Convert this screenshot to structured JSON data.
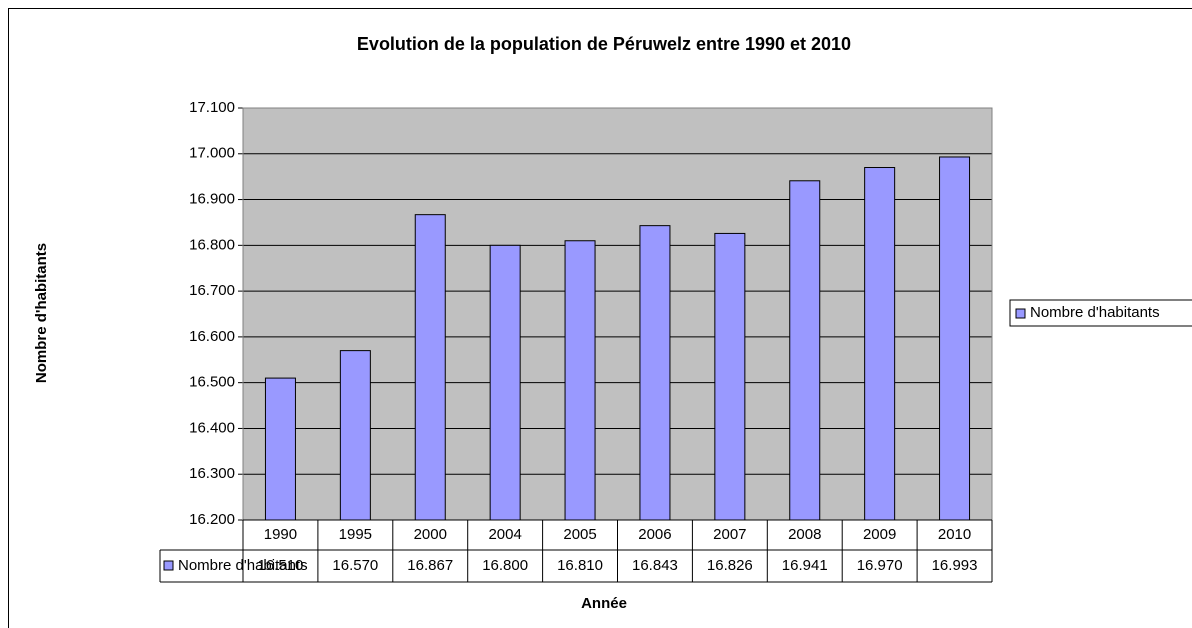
{
  "chart_data": {
    "type": "bar",
    "title": "Evolution de la population de Péruwelz entre 1990 et 2010",
    "x_label": "Année",
    "y_label": "Nombre d'habitants",
    "categories": [
      "1990",
      "1995",
      "2000",
      "2004",
      "2005",
      "2006",
      "2007",
      "2008",
      "2009",
      "2010"
    ],
    "series": [
      {
        "name": "Nombre d'habitants",
        "color": "#9999ff",
        "values": [
          16510,
          16570,
          16867,
          16800,
          16810,
          16843,
          16826,
          16941,
          16970,
          16993
        ],
        "value_labels": [
          "16.510",
          "16.570",
          "16.867",
          "16.800",
          "16.810",
          "16.843",
          "16.826",
          "16.941",
          "16.970",
          "16.993"
        ]
      }
    ],
    "ylim": [
      16200,
      17100
    ],
    "yticks": [
      {
        "value": 16200,
        "label": "16.200"
      },
      {
        "value": 16300,
        "label": "16.300"
      },
      {
        "value": 16400,
        "label": "16.400"
      },
      {
        "value": 16500,
        "label": "16.500"
      },
      {
        "value": 16600,
        "label": "16.600"
      },
      {
        "value": 16700,
        "label": "16.700"
      },
      {
        "value": 16800,
        "label": "16.800"
      },
      {
        "value": 16900,
        "label": "16.900"
      },
      {
        "value": 17000,
        "label": "17.000"
      },
      {
        "value": 17100,
        "label": "17.100"
      }
    ],
    "grid": true,
    "legend": "right",
    "plot_background": "#c0c0c0"
  }
}
